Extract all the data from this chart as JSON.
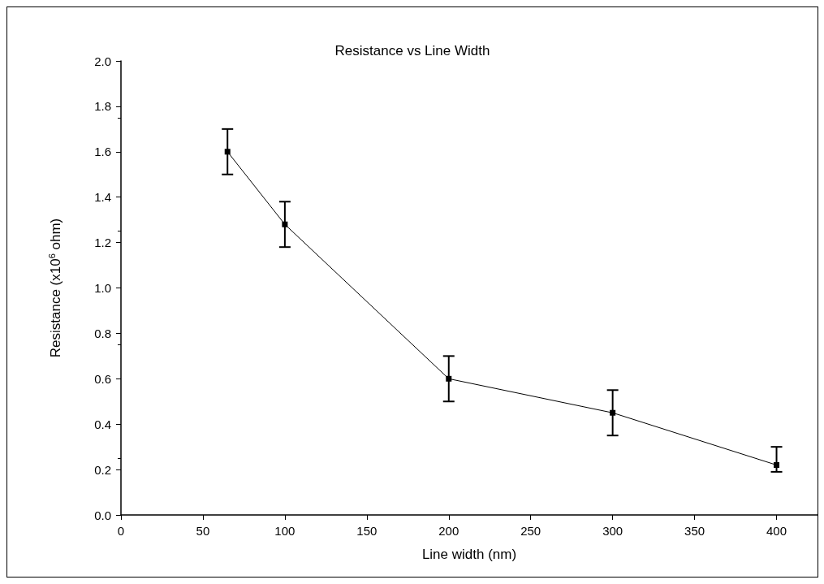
{
  "chart_data": {
    "type": "line",
    "title": "Resistance vs Line Width",
    "xlabel": "Line width (nm)",
    "ylabel": "Resistance (x10$^{6}$ ohm)",
    "x": [
      65,
      100,
      200,
      300,
      400
    ],
    "series": [
      {
        "color": "#000000",
        "values": [
          1.6,
          1.28,
          0.6,
          0.45,
          0.22
        ],
        "errors": [
          0.1,
          0.1,
          0.1,
          0.1,
          [
            0.19,
            0.3
          ]
        ]
      }
    ],
    "xlim": [
      0,
      425
    ],
    "xticks": [
      0,
      50,
      100,
      150,
      200,
      250,
      300,
      350,
      400
    ],
    "ylim": [
      0,
      2
    ],
    "yticks": [
      {
        "value": 0,
        "label": "0.0"
      },
      0.2,
      0.4,
      0.6,
      0.8,
      {
        "value": 1,
        "label": "1.0"
      },
      1.2,
      1.4,
      1.6,
      1.8,
      {
        "value": 2,
        "label": "2.0"
      }
    ],
    "grid": false,
    "marker": "square",
    "line_style": "solid"
  }
}
